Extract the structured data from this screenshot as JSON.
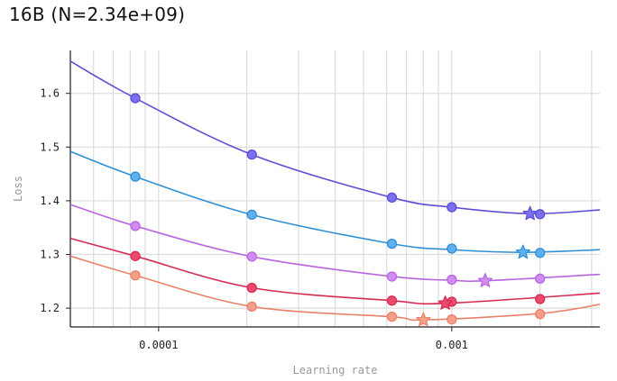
{
  "chart_data": {
    "type": "line",
    "title": "16B (N=2.34e+09)",
    "xlabel": "Learning rate",
    "ylabel": "Loss",
    "xscale": "log",
    "xlim": [
      5e-05,
      0.0032
    ],
    "ylim": [
      1.165,
      1.68
    ],
    "xticks": [
      {
        "value": 0.0001,
        "label": "0.0001"
      },
      {
        "value": 0.001,
        "label": "0.001"
      }
    ],
    "yticks": [
      {
        "value": 1.2,
        "label": "1.2"
      },
      {
        "value": 1.3,
        "label": "1.3"
      },
      {
        "value": 1.4,
        "label": "1.4"
      },
      {
        "value": 1.5,
        "label": "1.5"
      },
      {
        "value": 1.6,
        "label": "1.6"
      }
    ],
    "grid": true,
    "series": [
      {
        "color": "#5b4fd6",
        "marker_fill": "#7b70ee",
        "points": [
          [
            8.33e-05,
            1.591
          ],
          [
            0.000208,
            1.486
          ],
          [
            0.000625,
            1.406
          ],
          [
            0.001,
            1.388
          ],
          [
            0.002,
            1.375
          ]
        ],
        "fit": [
          [
            5e-05,
            1.66
          ],
          [
            8.33e-05,
            1.591
          ],
          [
            0.000208,
            1.486
          ],
          [
            0.000625,
            1.406
          ],
          [
            0.001,
            1.388
          ],
          [
            0.00185,
            1.376
          ],
          [
            0.0032,
            1.383
          ]
        ],
        "optimum": [
          0.00185,
          1.376
        ]
      },
      {
        "color": "#2f8fd6",
        "marker_fill": "#5fb0f0",
        "points": [
          [
            8.33e-05,
            1.445
          ],
          [
            0.000208,
            1.374
          ],
          [
            0.000625,
            1.32
          ],
          [
            0.001,
            1.311
          ],
          [
            0.002,
            1.303
          ]
        ],
        "fit": [
          [
            5e-05,
            1.492
          ],
          [
            8.33e-05,
            1.445
          ],
          [
            0.000208,
            1.374
          ],
          [
            0.000625,
            1.32
          ],
          [
            0.001,
            1.309
          ],
          [
            0.00175,
            1.304
          ],
          [
            0.0032,
            1.309
          ]
        ],
        "optimum": [
          0.00175,
          1.304
        ]
      },
      {
        "color": "#b866e0",
        "marker_fill": "#d08cf0",
        "points": [
          [
            8.33e-05,
            1.353
          ],
          [
            0.000208,
            1.296
          ],
          [
            0.000625,
            1.259
          ],
          [
            0.001,
            1.253
          ],
          [
            0.002,
            1.255
          ]
        ],
        "fit": [
          [
            5e-05,
            1.393
          ],
          [
            8.33e-05,
            1.353
          ],
          [
            0.000208,
            1.296
          ],
          [
            0.000625,
            1.259
          ],
          [
            0.001,
            1.252
          ],
          [
            0.0013,
            1.251
          ],
          [
            0.0032,
            1.263
          ]
        ],
        "optimum": [
          0.0013,
          1.251
        ]
      },
      {
        "color": "#d62a52",
        "marker_fill": "#ee4a6e",
        "points": [
          [
            8.33e-05,
            1.297
          ],
          [
            0.000208,
            1.238
          ],
          [
            0.000625,
            1.214
          ],
          [
            0.001,
            1.212
          ],
          [
            0.002,
            1.217
          ]
        ],
        "fit": [
          [
            5e-05,
            1.33
          ],
          [
            8.33e-05,
            1.297
          ],
          [
            0.000208,
            1.238
          ],
          [
            0.000625,
            1.214
          ],
          [
            0.00095,
            1.209
          ],
          [
            0.0032,
            1.228
          ]
        ],
        "optimum": [
          0.00095,
          1.209
        ]
      },
      {
        "color": "#e8826a",
        "marker_fill": "#f4a088",
        "points": [
          [
            8.33e-05,
            1.261
          ],
          [
            0.000208,
            1.203
          ],
          [
            0.000625,
            1.184
          ],
          [
            0.001,
            1.179
          ],
          [
            0.002,
            1.189
          ]
        ],
        "fit": [
          [
            5e-05,
            1.297
          ],
          [
            8.33e-05,
            1.261
          ],
          [
            0.000208,
            1.203
          ],
          [
            0.000625,
            1.184
          ],
          [
            0.0008,
            1.178
          ],
          [
            0.002,
            1.19
          ],
          [
            0.0032,
            1.207
          ]
        ],
        "optimum": [
          0.0008,
          1.178
        ]
      }
    ]
  }
}
